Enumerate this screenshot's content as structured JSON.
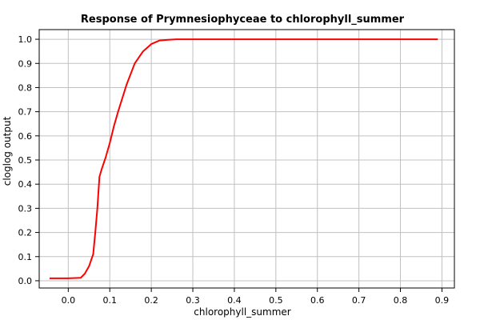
{
  "chart_data": {
    "type": "line",
    "title": "Response of Prymnesiophyceae to chlorophyll_summer",
    "xlabel": "chlorophyll_summer",
    "ylabel": "cloglog output",
    "xlim": [
      -0.07,
      0.93
    ],
    "ylim": [
      -0.03,
      1.04
    ],
    "xticks": [
      0.0,
      0.1,
      0.2,
      0.3,
      0.4,
      0.5,
      0.6,
      0.7,
      0.8,
      0.9
    ],
    "xtick_labels": [
      "0.0",
      "0.1",
      "0.2",
      "0.3",
      "0.4",
      "0.5",
      "0.6",
      "0.7",
      "0.8",
      "0.9"
    ],
    "yticks": [
      0.0,
      0.1,
      0.2,
      0.3,
      0.4,
      0.5,
      0.6,
      0.7,
      0.8,
      0.9,
      1.0
    ],
    "ytick_labels": [
      "0.0",
      "0.1",
      "0.2",
      "0.3",
      "0.4",
      "0.5",
      "0.6",
      "0.7",
      "0.8",
      "0.9",
      "1.0"
    ],
    "grid": true,
    "series": [
      {
        "color": "#ff0000",
        "x": [
          -0.045,
          0.0,
          0.03,
          0.04,
          0.05,
          0.06,
          0.065,
          0.07,
          0.075,
          0.08,
          0.09,
          0.1,
          0.11,
          0.12,
          0.14,
          0.16,
          0.18,
          0.2,
          0.22,
          0.24,
          0.26,
          0.3,
          0.5,
          0.7,
          0.89
        ],
        "y": [
          0.01,
          0.01,
          0.012,
          0.03,
          0.06,
          0.11,
          0.2,
          0.3,
          0.43,
          0.46,
          0.51,
          0.57,
          0.64,
          0.7,
          0.81,
          0.9,
          0.95,
          0.98,
          0.995,
          0.998,
          1.0,
          1.0,
          1.0,
          1.0,
          1.0
        ]
      }
    ]
  }
}
